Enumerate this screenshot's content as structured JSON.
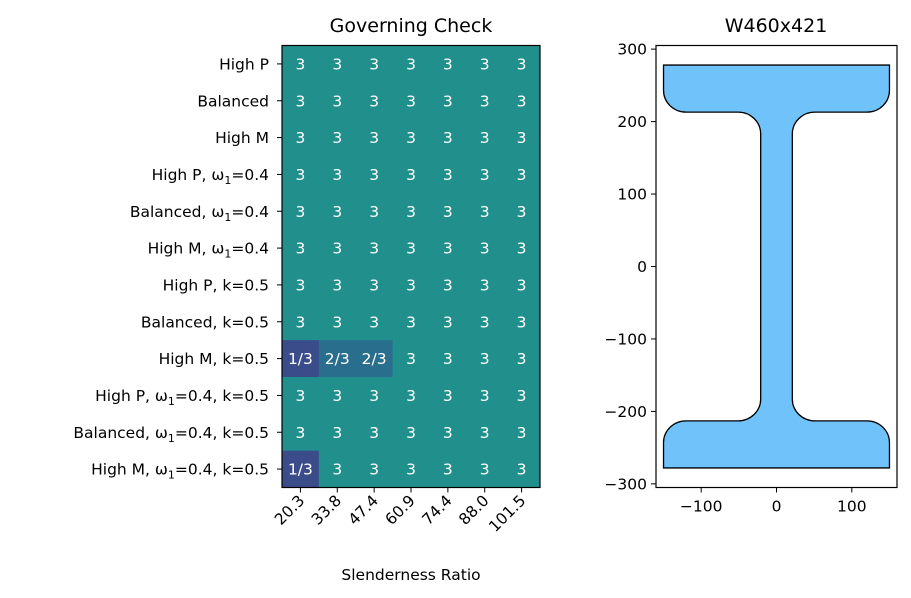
{
  "chart_data": [
    {
      "type": "heatmap",
      "title": "Governing Check",
      "xlabel": "Slenderness Ratio",
      "ylabel": "",
      "x_categories": [
        "20.3",
        "33.8",
        "47.4",
        "60.9",
        "74.4",
        "88.0",
        "101.5"
      ],
      "y_categories": [
        {
          "base": "High P",
          "sub": "",
          "rest": ""
        },
        {
          "base": "Balanced",
          "sub": "",
          "rest": ""
        },
        {
          "base": "High M",
          "sub": "",
          "rest": ""
        },
        {
          "base": "High P, ω",
          "sub": "1",
          "rest": "=0.4"
        },
        {
          "base": "Balanced, ω",
          "sub": "1",
          "rest": "=0.4"
        },
        {
          "base": "High M, ω",
          "sub": "1",
          "rest": "=0.4"
        },
        {
          "base": "High P, k=0.5",
          "sub": "",
          "rest": ""
        },
        {
          "base": "Balanced, k=0.5",
          "sub": "",
          "rest": ""
        },
        {
          "base": "High M, k=0.5",
          "sub": "",
          "rest": ""
        },
        {
          "base": "High P, ω",
          "sub": "1",
          "rest": "=0.4, k=0.5"
        },
        {
          "base": "Balanced, ω",
          "sub": "1",
          "rest": "=0.4, k=0.5"
        },
        {
          "base": "High M, ω",
          "sub": "1",
          "rest": "=0.4, k=0.5"
        }
      ],
      "cells": [
        [
          "3",
          "3",
          "3",
          "3",
          "3",
          "3",
          "3"
        ],
        [
          "3",
          "3",
          "3",
          "3",
          "3",
          "3",
          "3"
        ],
        [
          "3",
          "3",
          "3",
          "3",
          "3",
          "3",
          "3"
        ],
        [
          "3",
          "3",
          "3",
          "3",
          "3",
          "3",
          "3"
        ],
        [
          "3",
          "3",
          "3",
          "3",
          "3",
          "3",
          "3"
        ],
        [
          "3",
          "3",
          "3",
          "3",
          "3",
          "3",
          "3"
        ],
        [
          "3",
          "3",
          "3",
          "3",
          "3",
          "3",
          "3"
        ],
        [
          "3",
          "3",
          "3",
          "3",
          "3",
          "3",
          "3"
        ],
        [
          "1/3",
          "2/3",
          "2/3",
          "3",
          "3",
          "3",
          "3"
        ],
        [
          "3",
          "3",
          "3",
          "3",
          "3",
          "3",
          "3"
        ],
        [
          "3",
          "3",
          "3",
          "3",
          "3",
          "3",
          "3"
        ],
        [
          "1/3",
          "3",
          "3",
          "3",
          "3",
          "3",
          "3"
        ]
      ],
      "colors": {
        "1/3": "#3b4c8b",
        "2/3": "#2a6e8e",
        "3": "#21908d"
      },
      "grid": false
    },
    {
      "type": "cross-section",
      "title": "W460x421",
      "xlim": [
        -160,
        160
      ],
      "ylim": [
        -305,
        305
      ],
      "xticks": [
        -100,
        0,
        100
      ],
      "yticks": [
        300,
        200,
        100,
        0,
        -100,
        -200,
        -300
      ],
      "section": {
        "flange_width": 300,
        "depth": 556,
        "web_thickness": 42,
        "flange_thickness": 65,
        "fillet_radius": 30,
        "flange_tip_radius": 30
      },
      "fill_color": "#70c2fa",
      "edge_color": "#000000"
    }
  ]
}
